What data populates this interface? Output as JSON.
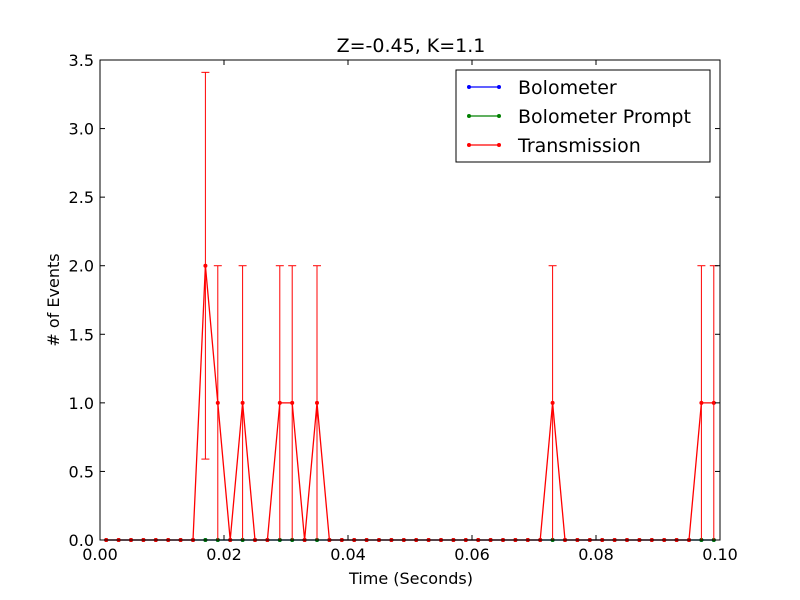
{
  "chart_data": {
    "type": "line",
    "title": "Z=-0.45, K=1.1",
    "xlabel": "Time (Seconds)",
    "ylabel": "# of Events",
    "xlim": [
      0.0,
      0.1
    ],
    "ylim": [
      0.0,
      3.5
    ],
    "xticks": [
      "0.00",
      "0.02",
      "0.04",
      "0.06",
      "0.08",
      "0.10"
    ],
    "yticks": [
      "0.0",
      "0.5",
      "1.0",
      "1.5",
      "2.0",
      "2.5",
      "3.0",
      "3.5"
    ],
    "legend_position": "top-right",
    "grid": false,
    "x": [
      0.001,
      0.003,
      0.005,
      0.007,
      0.009,
      0.011,
      0.013,
      0.015,
      0.017,
      0.019,
      0.021,
      0.023,
      0.025,
      0.027,
      0.029,
      0.031,
      0.033,
      0.035,
      0.037,
      0.039,
      0.041,
      0.043,
      0.045,
      0.047,
      0.049,
      0.051,
      0.053,
      0.055,
      0.057,
      0.059,
      0.061,
      0.063,
      0.065,
      0.067,
      0.069,
      0.071,
      0.073,
      0.075,
      0.077,
      0.079,
      0.081,
      0.083,
      0.085,
      0.087,
      0.089,
      0.091,
      0.093,
      0.095,
      0.097,
      0.099
    ],
    "series": [
      {
        "name": "Bolometer",
        "color": "#0000ff",
        "values": [
          0,
          0,
          0,
          0,
          0,
          0,
          0,
          0,
          0,
          0,
          0,
          0,
          0,
          0,
          0,
          0,
          0,
          0,
          0,
          0,
          0,
          0,
          0,
          0,
          0,
          0,
          0,
          0,
          0,
          0,
          0,
          0,
          0,
          0,
          0,
          0,
          0,
          0,
          0,
          0,
          0,
          0,
          0,
          0,
          0,
          0,
          0,
          0,
          0,
          0
        ]
      },
      {
        "name": "Bolometer Prompt",
        "color": "#008000",
        "values": [
          0,
          0,
          0,
          0,
          0,
          0,
          0,
          0,
          0,
          0,
          0,
          0,
          0,
          0,
          0,
          0,
          0,
          0,
          0,
          0,
          0,
          0,
          0,
          0,
          0,
          0,
          0,
          0,
          0,
          0,
          0,
          0,
          0,
          0,
          0,
          0,
          0,
          0,
          0,
          0,
          0,
          0,
          0,
          0,
          0,
          0,
          0,
          0,
          0,
          0
        ]
      },
      {
        "name": "Transmission",
        "color": "#ff0000",
        "values": [
          0,
          0,
          0,
          0,
          0,
          0,
          0,
          0,
          2,
          1,
          0,
          1,
          0,
          0,
          1,
          1,
          0,
          1,
          0,
          0,
          0,
          0,
          0,
          0,
          0,
          0,
          0,
          0,
          0,
          0,
          0,
          0,
          0,
          0,
          0,
          0,
          1,
          0,
          0,
          0,
          0,
          0,
          0,
          0,
          0,
          0,
          0,
          0,
          1,
          1
        ],
        "errors": [
          {
            "x": 0.017,
            "low": 0.59,
            "high": 3.41
          },
          {
            "x": 0.019,
            "low": 0.0,
            "high": 2.0
          },
          {
            "x": 0.023,
            "low": 0.0,
            "high": 2.0
          },
          {
            "x": 0.029,
            "low": 0.0,
            "high": 2.0
          },
          {
            "x": 0.031,
            "low": 0.0,
            "high": 2.0
          },
          {
            "x": 0.035,
            "low": 0.0,
            "high": 2.0
          },
          {
            "x": 0.073,
            "low": 0.0,
            "high": 2.0
          },
          {
            "x": 0.097,
            "low": 0.0,
            "high": 2.0
          },
          {
            "x": 0.099,
            "low": 0.0,
            "high": 2.0
          }
        ]
      }
    ]
  }
}
